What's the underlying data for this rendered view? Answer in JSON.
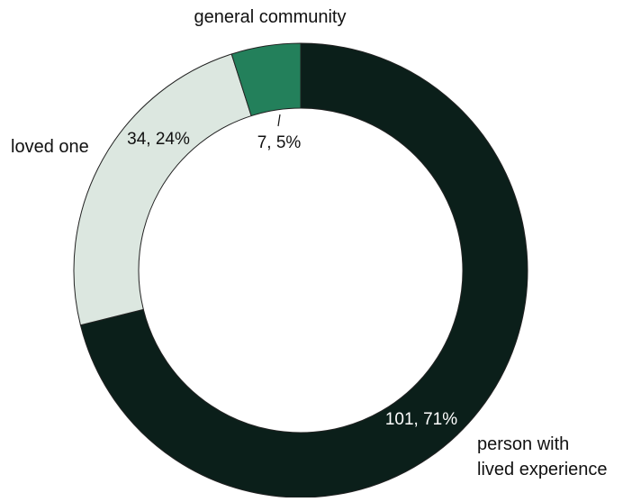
{
  "chart_data": {
    "type": "pie",
    "style": "donut",
    "slices": [
      {
        "label": "person with lived experience",
        "label_lines": [
          "person with",
          "lived experience"
        ],
        "value": 101,
        "percent": 71,
        "value_label": "101, 71%",
        "color": "#0b1f1a",
        "label_color": "#ffffff"
      },
      {
        "label": "loved one",
        "label_lines": [
          "loved one"
        ],
        "value": 34,
        "percent": 24,
        "value_label": "34, 24%",
        "color": "#dce7e0",
        "label_color": "#111111"
      },
      {
        "label": "general community",
        "label_lines": [
          "general community"
        ],
        "value": 7,
        "percent": 5,
        "value_label": "7, 5%",
        "color": "#23805b",
        "label_color": "#111111"
      }
    ]
  }
}
